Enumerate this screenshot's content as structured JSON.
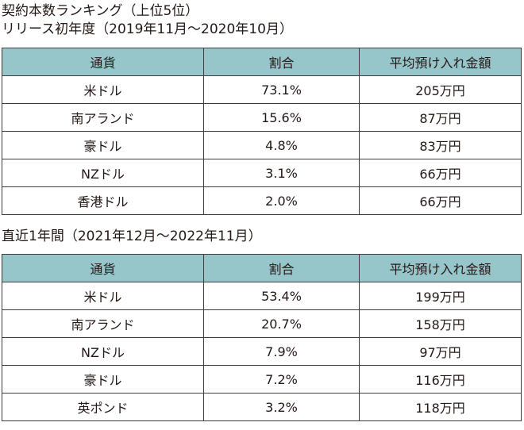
{
  "section1": {
    "title_line1": "契約本数ランキング（上位5位）",
    "title_line2": "リリース初年度（2019年11月～2020年10月）",
    "headers": [
      "通貨",
      "割合",
      "平均預け入れ金額"
    ],
    "rows": [
      {
        "currency": "米ドル",
        "share": "73.1%",
        "amount": "205万円"
      },
      {
        "currency": "南アランド",
        "share": "15.6%",
        "amount": "87万円"
      },
      {
        "currency": "豪ドル",
        "share": "4.8%",
        "amount": "83万円"
      },
      {
        "currency": "NZドル",
        "share": "3.1%",
        "amount": "66万円"
      },
      {
        "currency": "香港ドル",
        "share": "2.0%",
        "amount": "66万円"
      }
    ]
  },
  "section2": {
    "title": "直近1年間（2021年12月～2022年11月）",
    "headers": [
      "通貨",
      "割合",
      "平均預け入れ金額"
    ],
    "rows": [
      {
        "currency": "米ドル",
        "share": "53.4%",
        "amount": "199万円"
      },
      {
        "currency": "南アランド",
        "share": "20.7%",
        "amount": "158万円"
      },
      {
        "currency": "NZドル",
        "share": "7.9%",
        "amount": "97万円"
      },
      {
        "currency": "豪ドル",
        "share": "7.2%",
        "amount": "116万円"
      },
      {
        "currency": "英ポンド",
        "share": "3.2%",
        "amount": "118万円"
      }
    ]
  },
  "colors": {
    "header_bg": "#97c6ca",
    "border": "#3c3c3c",
    "text": "#231815"
  }
}
